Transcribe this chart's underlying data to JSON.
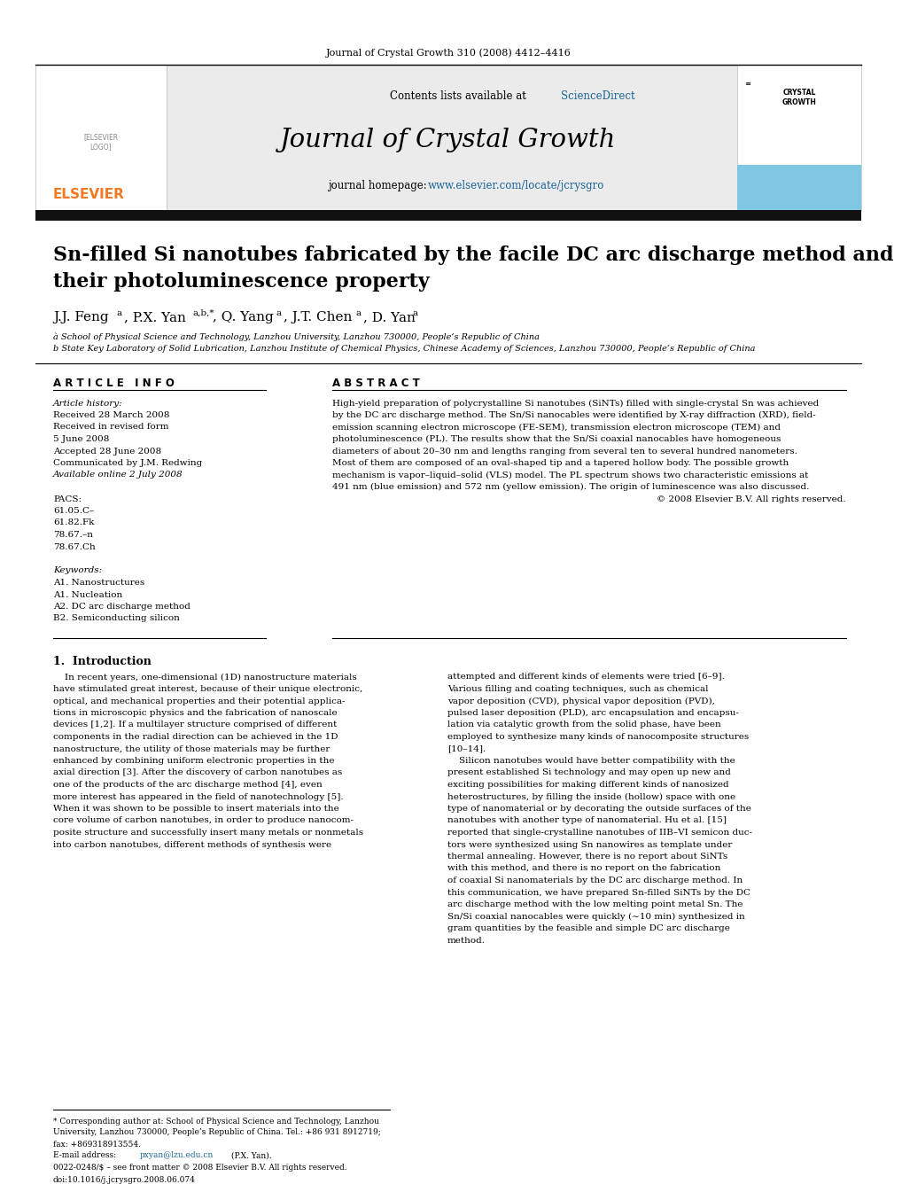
{
  "journal_info": "Journal of Crystal Growth 310 (2008) 4412–4416",
  "contents_line": "Contents lists available at ",
  "sciencedirect": "ScienceDirect",
  "journal_name": "Journal of Crystal Growth",
  "homepage_label": "journal homepage: ",
  "homepage_url": "www.elsevier.com/locate/jcrysgro",
  "title_line1": "Sn-filled Si nanotubes fabricated by the facile DC arc discharge method and",
  "title_line2": "their photoluminescence property",
  "affil_a": "à School of Physical Science and Technology, Lanzhou University, Lanzhou 730000, People’s Republic of China",
  "affil_b": "b State Key Laboratory of Solid Lubrication, Lanzhou Institute of Chemical Physics, Chinese Academy of Sciences, Lanzhou 730000, People’s Republic of China",
  "article_info_header": "A R T I C L E   I N F O",
  "abstract_header": "A B S T R A C T",
  "article_history_label": "Article history:",
  "received1": "Received 28 March 2008",
  "received_revised": "Received in revised form",
  "revised_date": "5 June 2008",
  "accepted": "Accepted 28 June 2008",
  "communicated": "Communicated by J.M. Redwing",
  "available": "Available online 2 July 2008",
  "pacs_label": "PACS:",
  "pacs_values": [
    "61.05.C–",
    "61.82.Fk",
    "78.67.–n",
    "78.67.Ch"
  ],
  "keywords_label": "Keywords:",
  "keywords": [
    "A1. Nanostructures",
    "A1. Nucleation",
    "A2. DC arc discharge method",
    "B2. Semiconducting silicon"
  ],
  "abstract_lines": [
    "High-yield preparation of polycrystalline Si nanotubes (SiNTs) filled with single-crystal Sn was achieved",
    "by the DC arc discharge method. The Sn/Si nanocables were identified by X-ray diffraction (XRD), field-",
    "emission scanning electron microscope (FE-SEM), transmission electron microscope (TEM) and",
    "photoluminescence (PL). The results show that the Sn/Si coaxial nanocables have homogeneous",
    "diameters of about 20–30 nm and lengths ranging from several ten to several hundred nanometers.",
    "Most of them are composed of an oval-shaped tip and a tapered hollow body. The possible growth",
    "mechanism is vapor–liquid–solid (VLS) model. The PL spectrum shows two characteristic emissions at",
    "491 nm (blue emission) and 572 nm (yellow emission). The origin of luminescence was also discussed."
  ],
  "abstract_copyright": "© 2008 Elsevier B.V. All rights reserved.",
  "section1_title": "1.  Introduction",
  "intro_col1_lines": [
    "    In recent years, one-dimensional (1D) nanostructure materials",
    "have stimulated great interest, because of their unique electronic,",
    "optical, and mechanical properties and their potential applica-",
    "tions in microscopic physics and the fabrication of nanoscale",
    "devices [1,2]. If a multilayer structure comprised of different",
    "components in the radial direction can be achieved in the 1D",
    "nanostructure, the utility of those materials may be further",
    "enhanced by combining uniform electronic properties in the",
    "axial direction [3]. After the discovery of carbon nanotubes as",
    "one of the products of the arc discharge method [4], even",
    "more interest has appeared in the field of nanotechnology [5].",
    "When it was shown to be possible to insert materials into the",
    "core volume of carbon nanotubes, in order to produce nanocom-",
    "posite structure and successfully insert many metals or nonmetals",
    "into carbon nanotubes, different methods of synthesis were"
  ],
  "intro_col2_lines": [
    "attempted and different kinds of elements were tried [6–9].",
    "Various filling and coating techniques, such as chemical",
    "vapor deposition (CVD), physical vapor deposition (PVD),",
    "pulsed laser deposition (PLD), arc encapsulation and encapsu-",
    "lation via catalytic growth from the solid phase, have been",
    "employed to synthesize many kinds of nanocomposite structures",
    "[10–14].",
    "    Silicon nanotubes would have better compatibility with the",
    "present established Si technology and may open up new and",
    "exciting possibilities for making different kinds of nanosized",
    "heterostructures, by filling the inside (hollow) space with one",
    "type of nanomaterial or by decorating the outside surfaces of the",
    "nanotubes with another type of nanomaterial. Hu et al. [15]",
    "reported that single-crystalline nanotubes of IIB–VI semicon duc-",
    "tors were synthesized using Sn nanowires as template under",
    "thermal annealing. However, there is no report about SiNTs",
    "with this method, and there is no report on the fabrication",
    "of coaxial Si nanomaterials by the DC arc discharge method. In",
    "this communication, we have prepared Sn-filled SiNTs by the DC",
    "arc discharge method with the low melting point metal Sn. The",
    "Sn/Si coaxial nanocables were quickly (∼10 min) synthesized in",
    "gram quantities by the feasible and simple DC arc discharge",
    "method."
  ],
  "footnote_star": "* Corresponding author at: School of Physical Science and Technology, Lanzhou",
  "footnote_star2": "University, Lanzhou 730000, People’s Republic of China. Tel.: +86 931 8912719;",
  "footnote_star3": "fax: +869318913554.",
  "footnote_email_label": "E-mail address: ",
  "footnote_email_link": "pxyan@lzu.edu.cn",
  "footnote_email_end": " (P.X. Yan).",
  "footnote_issn": "0022-0248/$ – see front matter © 2008 Elsevier B.V. All rights reserved.",
  "footnote_doi": "doi:10.1016/j.jcrysgro.2008.06.074",
  "bg_color": "#ffffff",
  "elsevier_orange": "#f47920",
  "link_color": "#1a6496",
  "cyan_box_color": "#7ec8e3",
  "gray_bg": "#ebebeb"
}
